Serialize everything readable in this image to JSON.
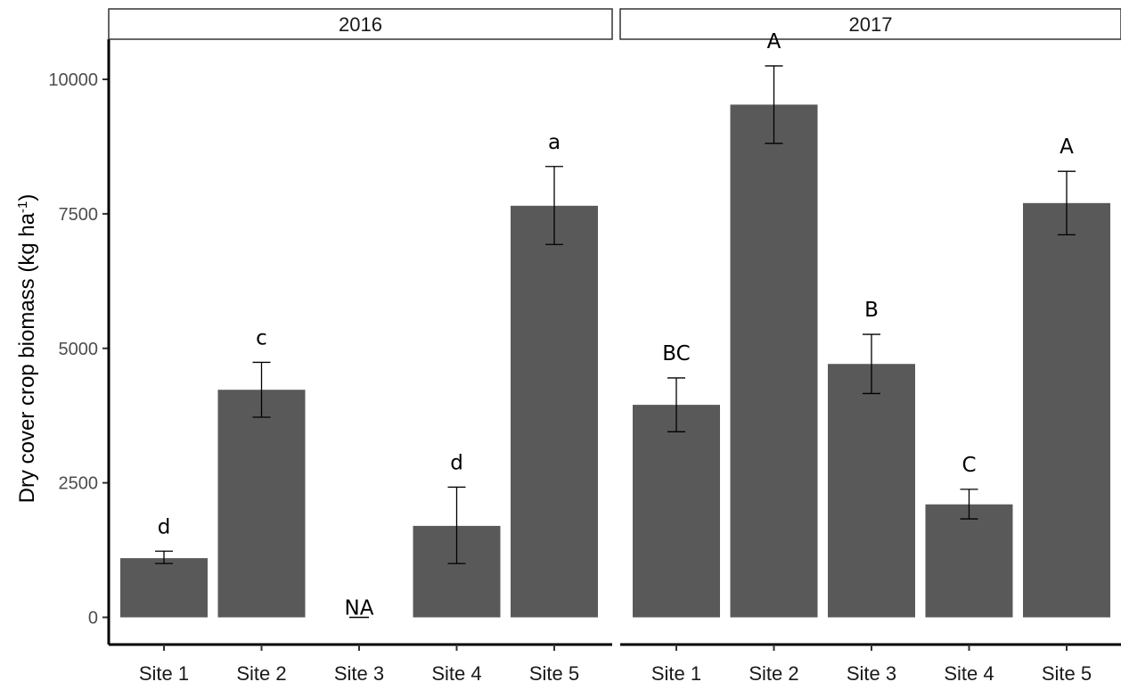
{
  "chart_data": {
    "type": "bar",
    "ylabel_main": "Dry cover crop biomass (kg ha",
    "ylabel_sup": "-1",
    "ylabel_close": ")",
    "ylim": [
      0,
      10800
    ],
    "yticks": [
      0,
      2500,
      5000,
      7500,
      10000
    ],
    "ytick_labels": [
      "0",
      "2500",
      "5000",
      "7500",
      "10000"
    ],
    "bar_color": "#595959",
    "grid": false,
    "panels": [
      {
        "title": "2016",
        "categories": [
          "Site 1",
          "Site 2",
          "Site 3",
          "Site 4",
          "Site 5"
        ],
        "values": [
          1100,
          4230,
          0,
          1700,
          7650
        ],
        "error": [
          [
            1000,
            1230
          ],
          [
            3720,
            4740
          ],
          [
            0,
            0
          ],
          [
            1000,
            2420
          ],
          [
            6930,
            8380
          ]
        ],
        "labels": [
          "d",
          "c",
          "NA",
          "d",
          "a"
        ]
      },
      {
        "title": "2017",
        "categories": [
          "Site 1",
          "Site 2",
          "Site 3",
          "Site 4",
          "Site 5"
        ],
        "values": [
          3950,
          9530,
          4710,
          2100,
          7700
        ],
        "error": [
          [
            3450,
            4450
          ],
          [
            8810,
            10250
          ],
          [
            4160,
            5260
          ],
          [
            1830,
            2380
          ],
          [
            7110,
            8290
          ]
        ],
        "labels": [
          "BC",
          "A",
          "B",
          "C",
          "A"
        ]
      }
    ]
  }
}
